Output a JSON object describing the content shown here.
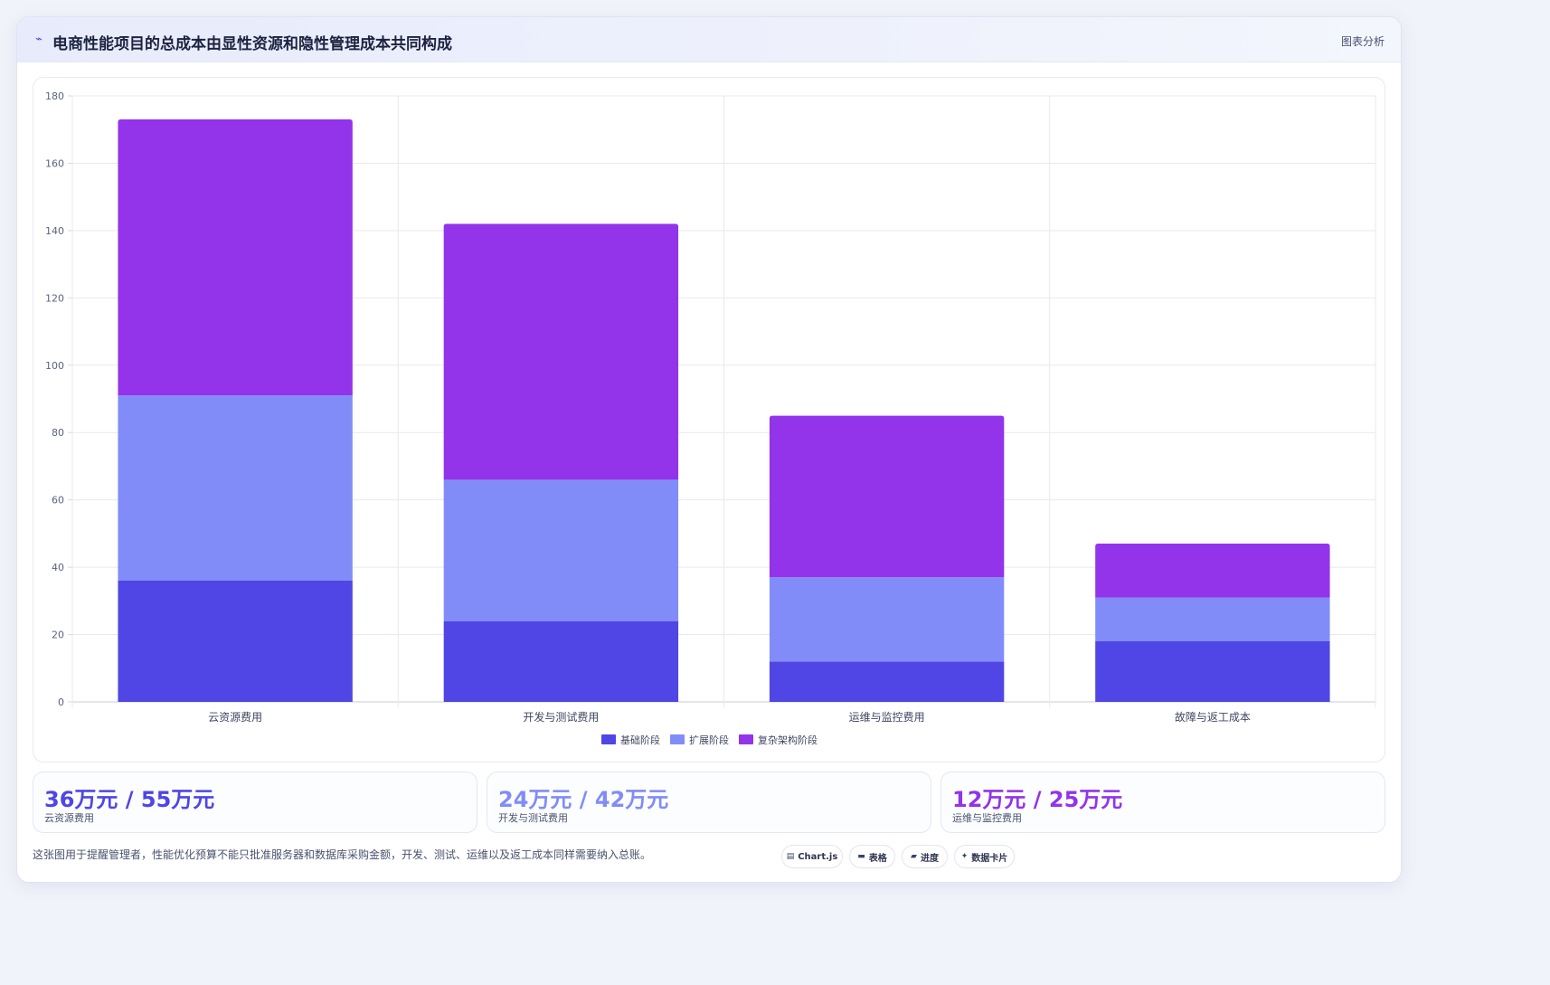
{
  "header": {
    "icon": "trend-line-icon",
    "icon_glyph": "⌁",
    "title": "电商性能项目的总成本由显性资源和隐性管理成本共同构成",
    "meta": "图表分析"
  },
  "chart_data": {
    "type": "bar",
    "stacked": true,
    "categories": [
      "云资源费用",
      "开发与测试费用",
      "运维与监控费用",
      "故障与返工成本"
    ],
    "series": [
      {
        "name": "基础阶段",
        "color": "#4f46e5",
        "values": [
          36,
          24,
          12,
          18
        ]
      },
      {
        "name": "扩展阶段",
        "color": "#818cf8",
        "values": [
          55,
          42,
          25,
          13
        ]
      },
      {
        "name": "复杂架构阶段",
        "color": "#9333ea",
        "values": [
          82,
          76,
          48,
          16
        ]
      }
    ],
    "ylim": [
      0,
      180
    ],
    "yticks": [
      0,
      20,
      40,
      60,
      80,
      100,
      120,
      140,
      160,
      180
    ],
    "grid": true,
    "legend_position": "bottom"
  },
  "stats": [
    {
      "value": "36万元 / 55万元",
      "label": "云资源费用",
      "color": "#4f46e5"
    },
    {
      "value": "24万元 / 42万元",
      "label": "开发与测试费用",
      "color": "#818cf8"
    },
    {
      "value": "12万元 / 25万元",
      "label": "运维与监控费用",
      "color": "#9333ea"
    }
  ],
  "footnote": "这张图用于提醒管理者，性能优化预算不能只批准服务器和数据库采购金额，开发、测试、运维以及返工成本同样需要纳入总账。",
  "chips": [
    {
      "icon": "chart-icon",
      "glyph": "▤",
      "label": "Chart.js"
    },
    {
      "icon": "table-icon",
      "glyph": "▬",
      "label": "表格"
    },
    {
      "icon": "progress-icon",
      "glyph": "▰",
      "label": "进度"
    },
    {
      "icon": "sparkle-icon",
      "glyph": "✦",
      "label": "数据卡片"
    }
  ]
}
